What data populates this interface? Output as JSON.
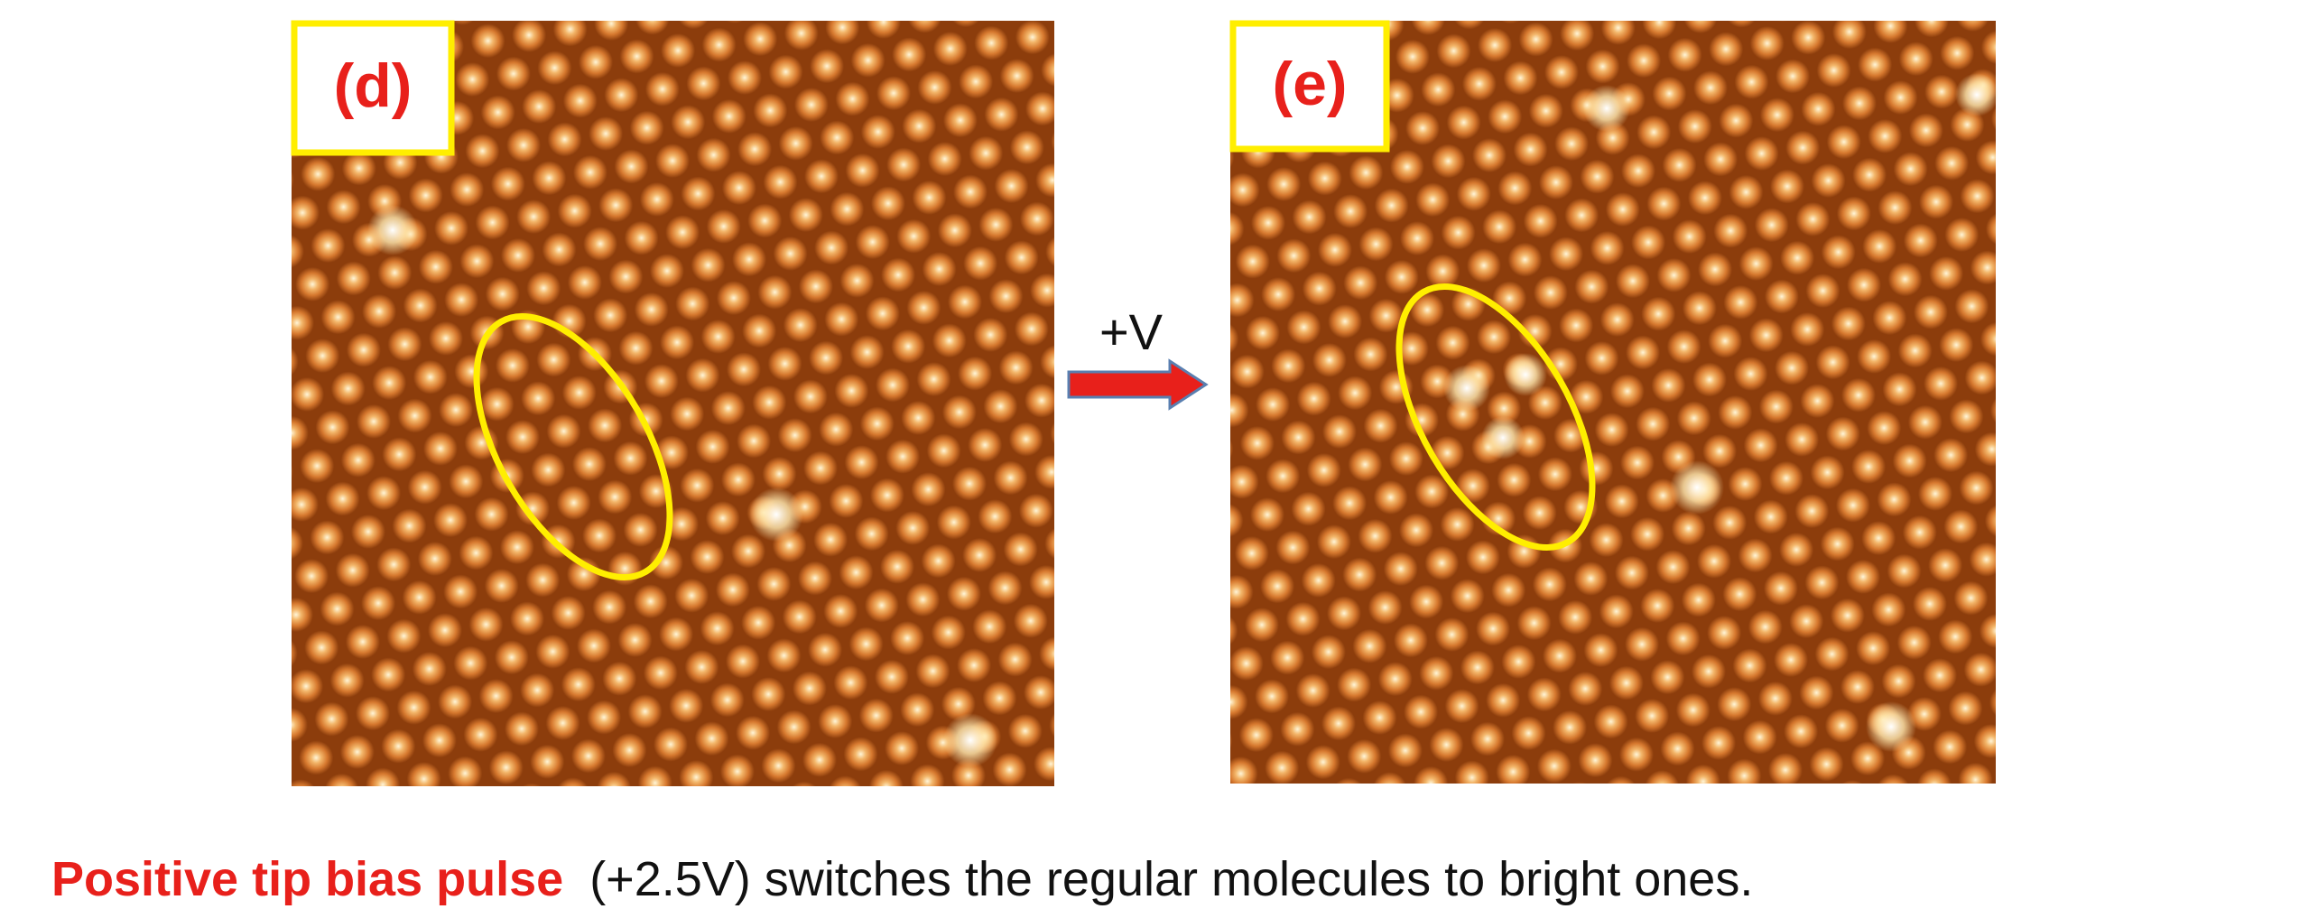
{
  "panels": [
    {
      "label": "(d)"
    },
    {
      "label": "(e)"
    }
  ],
  "arrow_label": "+V",
  "caption": {
    "highlight": "Positive tip bias pulse",
    "text": "(+2.5V) switches the regular molecules to bright ones."
  }
}
